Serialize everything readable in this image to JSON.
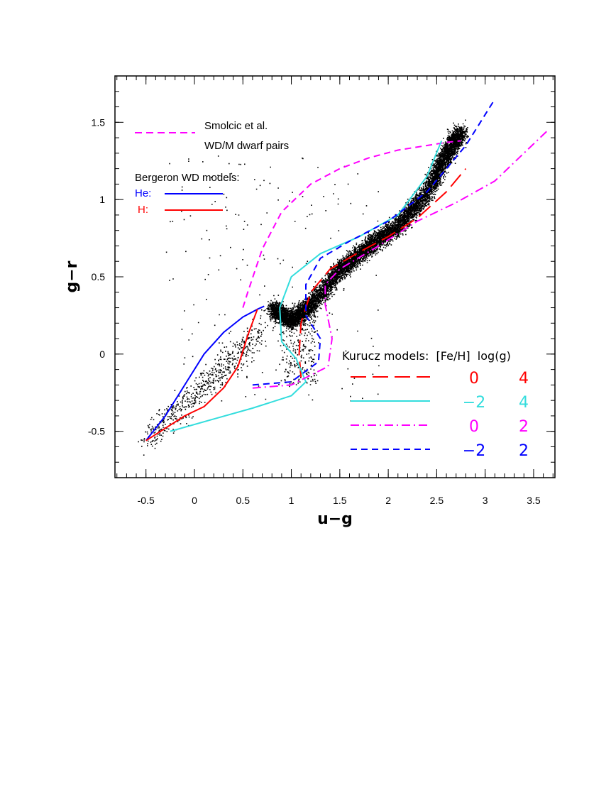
{
  "chart_data": {
    "type": "scatter",
    "xlabel": "u−g",
    "ylabel": "g−r",
    "xlim": [
      -0.82,
      3.72
    ],
    "ylim": [
      -0.8,
      1.8
    ],
    "x_ticks": [
      "-0.5",
      "0",
      "0.5",
      "1",
      "1.5",
      "2",
      "2.5",
      "3",
      "3.5"
    ],
    "y_ticks": [
      "-0.5",
      "0",
      "0.5",
      "1",
      "1.5"
    ],
    "x_tick_values": [
      -0.5,
      0,
      0.5,
      1,
      1.5,
      2,
      2.5,
      3,
      3.5
    ],
    "y_tick_values": [
      -0.5,
      0,
      0.5,
      1,
      1.5
    ],
    "points_description_main_locus": [
      [
        0.8,
        0.3
      ],
      [
        1.0,
        0.22
      ],
      [
        1.2,
        0.32
      ],
      [
        1.5,
        0.55
      ],
      [
        1.8,
        0.7
      ],
      [
        2.1,
        0.83
      ],
      [
        2.4,
        1.05
      ],
      [
        2.6,
        1.3
      ],
      [
        2.75,
        1.45
      ]
    ],
    "legend": {
      "smolcic_line1": "Smolcic et al.",
      "smolcic_line2": "WD/M dwarf pairs",
      "bergeron_title": "Bergeron WD models:",
      "he_label": "He:",
      "h_label": "H:",
      "kurucz_header": "Kurucz models:  [Fe/H]  log(g)",
      "kurucz_rows": [
        {
          "feh": "0",
          "logg": "4",
          "color": "#ff0000",
          "style": "longdash"
        },
        {
          "feh": "−2",
          "logg": "4",
          "color": "#33dddd",
          "style": "solid"
        },
        {
          "feh": "0",
          "logg": "2",
          "color": "#ff00ff",
          "style": "dashdot"
        },
        {
          "feh": "−2",
          "logg": "2",
          "color": "#0000ff",
          "style": "dash"
        }
      ]
    },
    "series": [
      {
        "name": "Smolcic et al.",
        "color": "#ff00ff",
        "style": "dash",
        "x": [
          0.5,
          0.55,
          0.7,
          0.9,
          1.2,
          1.5,
          1.8,
          2.1,
          2.4,
          2.6,
          2.75
        ],
        "y": [
          0.3,
          0.4,
          0.68,
          0.92,
          1.1,
          1.2,
          1.27,
          1.32,
          1.35,
          1.37,
          1.38
        ]
      },
      {
        "name": "He",
        "color": "#0000ff",
        "style": "solid",
        "x": [
          -0.5,
          -0.3,
          -0.1,
          0.1,
          0.3,
          0.5,
          0.65,
          0.72
        ],
        "y": [
          -0.56,
          -0.4,
          -0.2,
          0.0,
          0.14,
          0.24,
          0.29,
          0.31
        ]
      },
      {
        "name": "H",
        "color": "#ff0000",
        "style": "solid",
        "x": [
          -0.5,
          -0.3,
          -0.1,
          0.1,
          0.3,
          0.45,
          0.55,
          0.65
        ],
        "y": [
          -0.56,
          -0.48,
          -0.4,
          -0.34,
          -0.22,
          -0.08,
          0.12,
          0.29
        ]
      },
      {
        "color": "#ff0000",
        "style": "longdash",
        "x": [
          1.1,
          1.08,
          1.1,
          1.2,
          1.4,
          1.7,
          2.0,
          2.3,
          2.6,
          2.8
        ],
        "y": [
          -0.15,
          0.0,
          0.2,
          0.4,
          0.55,
          0.66,
          0.76,
          0.88,
          1.05,
          1.2
        ]
      },
      {
        "color": "#33dddd",
        "style": "solid",
        "x": [
          -0.25,
          0.2,
          0.6,
          1.0,
          1.15,
          1.05,
          0.9,
          0.88,
          1.0,
          1.3,
          1.7,
          2.1,
          2.4,
          2.55
        ],
        "y": [
          -0.5,
          -0.42,
          -0.35,
          -0.27,
          -0.18,
          -0.03,
          0.08,
          0.3,
          0.5,
          0.65,
          0.76,
          0.9,
          1.15,
          1.38
        ]
      },
      {
        "color": "#ff00ff",
        "style": "dashdot",
        "x": [
          0.6,
          1.0,
          1.38,
          1.42,
          1.35,
          1.35,
          1.5,
          1.9,
          2.3,
          2.7,
          3.1,
          3.4,
          3.65
        ],
        "y": [
          -0.22,
          -0.2,
          -0.08,
          0.1,
          0.32,
          0.45,
          0.55,
          0.7,
          0.86,
          0.98,
          1.12,
          1.3,
          1.45
        ]
      },
      {
        "color": "#0000ff",
        "style": "dash",
        "x": [
          0.6,
          1.0,
          1.28,
          1.3,
          1.15,
          1.15,
          1.3,
          1.6,
          2.0,
          2.4,
          2.8,
          3.1
        ],
        "y": [
          -0.2,
          -0.18,
          -0.05,
          0.1,
          0.25,
          0.45,
          0.62,
          0.73,
          0.86,
          1.05,
          1.35,
          1.65
        ]
      }
    ]
  }
}
